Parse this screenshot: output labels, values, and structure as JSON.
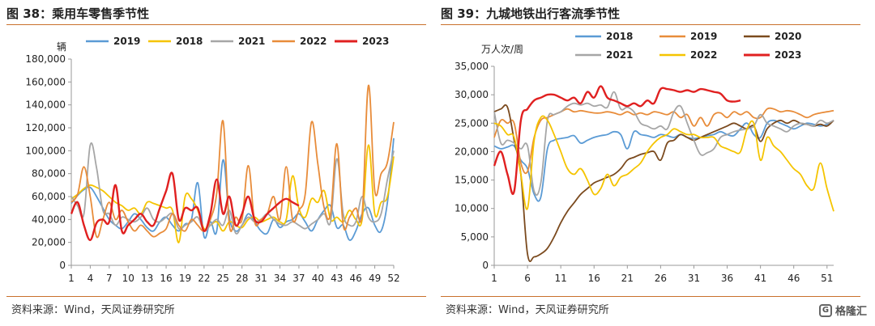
{
  "watermark": {
    "text": "格隆汇",
    "icon": "G"
  },
  "chart_data": [
    {
      "type": "line",
      "title": "图 38：乘用车零售季节性",
      "source": "资料来源：Wind，天风证券研究所",
      "ylabel": "辆",
      "ylim": [
        0,
        180000
      ],
      "yticks": [
        0,
        20000,
        40000,
        60000,
        80000,
        100000,
        120000,
        140000,
        160000,
        180000
      ],
      "ytick_labels": [
        "0",
        "20,000",
        "40,000",
        "60,000",
        "80,000",
        "100,000",
        "120,000",
        "140,000",
        "160,000",
        "180,000"
      ],
      "xlim": [
        1,
        52
      ],
      "xticks": [
        1,
        4,
        7,
        10,
        13,
        16,
        19,
        22,
        25,
        28,
        31,
        34,
        37,
        40,
        43,
        46,
        49,
        52
      ],
      "grid": false,
      "legend_position": "top",
      "series": [
        {
          "name": "2019",
          "color": "#5b9bd5",
          "values": [
            54000,
            61000,
            66000,
            68000,
            60000,
            50000,
            40000,
            35000,
            32000,
            38000,
            45000,
            40000,
            33000,
            30000,
            38000,
            42000,
            35000,
            30000,
            36000,
            40000,
            72000,
            25000,
            38000,
            30000,
            92000,
            42000,
            30000,
            35000,
            45000,
            38000,
            30000,
            28000,
            40000,
            33000,
            38000,
            40000,
            45000,
            38000,
            30000,
            40000,
            48000,
            52000,
            33000,
            35000,
            22000,
            30000,
            45000,
            50000,
            35000,
            30000,
            55000,
            111000
          ]
        },
        {
          "name": "2018",
          "color": "#f5c400",
          "values": [
            58000,
            62000,
            67000,
            70000,
            68000,
            65000,
            60000,
            55000,
            52000,
            48000,
            50000,
            45000,
            55000,
            54000,
            52000,
            50000,
            48000,
            20000,
            60000,
            58000,
            48000,
            32000,
            35000,
            38000,
            30000,
            38000,
            35000,
            33000,
            40000,
            42000,
            38000,
            40000,
            42000,
            38000,
            40000,
            78000,
            50000,
            42000,
            58000,
            55000,
            65000,
            40000,
            42000,
            38000,
            48000,
            40000,
            40000,
            105000,
            45000,
            55000,
            60000,
            95000
          ]
        },
        {
          "name": "2021",
          "color": "#a6a6a6",
          "values": [
            60000,
            52000,
            45000,
            105000,
            85000,
            48000,
            45000,
            35000,
            42000,
            40000,
            38000,
            42000,
            50000,
            40000,
            38000,
            42000,
            45000,
            32000,
            35000,
            38000,
            42000,
            30000,
            35000,
            40000,
            35000,
            48000,
            28000,
            35000,
            42000,
            38000,
            40000,
            45000,
            40000,
            36000,
            35000,
            38000,
            35000,
            32000,
            36000,
            40000,
            45000,
            38000,
            93000,
            45000,
            35000,
            38000,
            60000,
            42000,
            38000,
            45000,
            75000,
            100000
          ]
        },
        {
          "name": "2022",
          "color": "#e88c3a",
          "values": [
            55000,
            62000,
            86000,
            60000,
            25000,
            40000,
            55000,
            40000,
            48000,
            38000,
            30000,
            35000,
            30000,
            25000,
            28000,
            32000,
            45000,
            35000,
            30000,
            40000,
            35000,
            30000,
            40000,
            63000,
            126000,
            35000,
            42000,
            40000,
            87000,
            38000,
            40000,
            45000,
            60000,
            40000,
            86000,
            40000,
            48000,
            62000,
            125000,
            88000,
            50000,
            45000,
            106000,
            35000,
            42000,
            50000,
            45000,
            157000,
            65000,
            80000,
            90000,
            125000
          ]
        },
        {
          "name": "2023",
          "color": "#e02020",
          "values": [
            45000,
            55000,
            35000,
            22000,
            37000,
            40000,
            38000,
            70000,
            30000,
            35000,
            40000,
            45000,
            38000,
            35000,
            50000,
            65000,
            80000,
            40000,
            50000,
            48000,
            50000,
            30000,
            45000,
            75000,
            45000,
            60000,
            35000,
            45000,
            60000,
            40000,
            38000,
            45000,
            50000,
            55000,
            58000,
            55000,
            52000
          ]
        }
      ]
    },
    {
      "type": "line",
      "title": "图 39：九城地铁出行客流季节性",
      "source": "资料来源：Wind，天风证券研究所",
      "ylabel": "万人次/周",
      "ylim": [
        0,
        35000
      ],
      "yticks": [
        0,
        5000,
        10000,
        15000,
        20000,
        25000,
        30000,
        35000
      ],
      "ytick_labels": [
        "0",
        "5,000",
        "10,000",
        "15,000",
        "20,000",
        "25,000",
        "30,000",
        "35,000"
      ],
      "xlim": [
        1,
        52
      ],
      "xticks": [
        1,
        6,
        11,
        16,
        21,
        26,
        31,
        36,
        41,
        46,
        51
      ],
      "grid": false,
      "legend_position": "top",
      "series": [
        {
          "name": "2018",
          "color": "#5b9bd5",
          "values": [
            21000,
            20500,
            20800,
            21000,
            18500,
            17000,
            12500,
            12000,
            20500,
            22000,
            22300,
            22500,
            22800,
            21500,
            22000,
            22500,
            22800,
            23000,
            23500,
            23000,
            20500,
            23500,
            23000,
            22800,
            22500,
            23000,
            22800,
            22500,
            23000,
            22500,
            22300,
            22500,
            22800,
            23000,
            23500,
            23000,
            22800,
            24000,
            25000,
            23000,
            22500,
            25000,
            25500,
            25000,
            24500,
            24000,
            24500,
            25000,
            24800,
            24500,
            24800,
            25500
          ]
        },
        {
          "name": "2019",
          "color": "#e88c3a",
          "values": [
            22500,
            25500,
            25000,
            25000,
            18000,
            16500,
            22500,
            25500,
            26000,
            26500,
            27000,
            27500,
            27000,
            27200,
            27000,
            26800,
            26800,
            27000,
            26800,
            26500,
            27000,
            26500,
            26800,
            26500,
            27000,
            26800,
            26500,
            27000,
            26000,
            26500,
            24500,
            26000,
            24500,
            26500,
            26800,
            26000,
            27000,
            26500,
            27000,
            26000,
            26000,
            27500,
            27500,
            27000,
            27200,
            27000,
            26500,
            26000,
            26500,
            26800,
            27000,
            27200
          ]
        },
        {
          "name": "2020",
          "color": "#7b4a1e",
          "values": [
            27000,
            27500,
            27800,
            22000,
            16000,
            2000,
            1500,
            2000,
            3000,
            5000,
            7500,
            9500,
            11000,
            12500,
            13500,
            14500,
            15000,
            15500,
            16000,
            17000,
            18500,
            19000,
            19500,
            19800,
            20000,
            18500,
            21500,
            22000,
            23000,
            22500,
            22000,
            22500,
            23000,
            23500,
            24000,
            24500,
            25000,
            24500,
            24000,
            24500,
            21800,
            24000,
            25000,
            25500,
            25000,
            25500,
            25000,
            24800,
            24500,
            24800,
            24500,
            25500
          ]
        },
        {
          "name": "2021",
          "color": "#a6a6a6",
          "values": [
            27000,
            21500,
            22000,
            21500,
            20500,
            21000,
            13000,
            14500,
            25500,
            26500,
            27000,
            28000,
            28500,
            28200,
            28500,
            28000,
            28200,
            27800,
            30500,
            27500,
            27800,
            27000,
            25000,
            24500,
            24000,
            24500,
            24000,
            27000,
            28000,
            25000,
            22000,
            19500,
            19800,
            20500,
            22500,
            23000,
            23500,
            23800,
            24000,
            24500,
            26500,
            25000,
            24500,
            24000,
            23500,
            24500,
            25000,
            24800,
            24500,
            25500,
            25000,
            25500
          ]
        },
        {
          "name": "2022",
          "color": "#f5c400",
          "values": [
            25000,
            24500,
            23000,
            22500,
            16000,
            10000,
            22000,
            26000,
            25500,
            23000,
            20000,
            17000,
            16000,
            17000,
            15000,
            12500,
            13500,
            16000,
            14000,
            15500,
            16000,
            17000,
            18000,
            20000,
            21500,
            22500,
            23000,
            24000,
            23500,
            23000,
            23000,
            22500,
            22500,
            22500,
            21000,
            20500,
            20000,
            20000,
            24000,
            25000,
            18500,
            22500,
            21000,
            20000,
            18500,
            17000,
            16000,
            14000,
            13500,
            18000,
            13500,
            9500
          ]
        },
        {
          "name": "2023",
          "color": "#e02020",
          "values": [
            17500,
            20000,
            16000,
            13000,
            25500,
            27500,
            29000,
            29500,
            30000,
            30000,
            29500,
            29000,
            29500,
            28500,
            30500,
            29500,
            31500,
            29500,
            29000,
            28500,
            28000,
            28500,
            28000,
            29000,
            28500,
            31000,
            31000,
            30800,
            30500,
            30800,
            30500,
            31000,
            30800,
            30500,
            30200,
            29000,
            28800,
            29000
          ]
        }
      ]
    }
  ]
}
